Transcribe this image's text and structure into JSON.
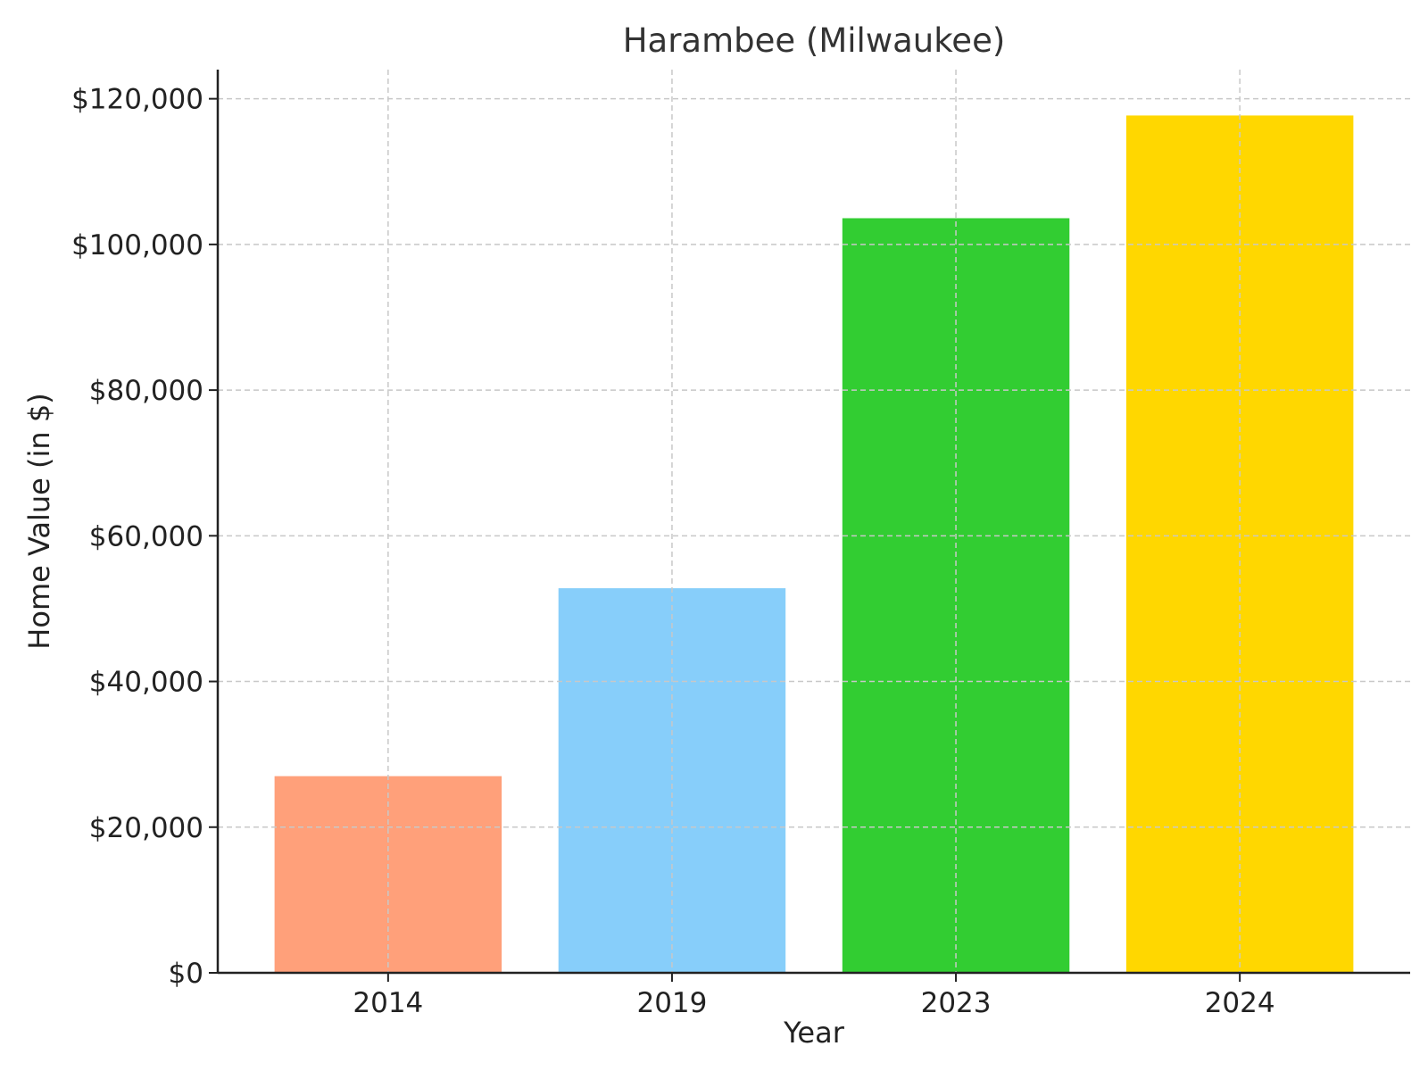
{
  "chart_data": {
    "type": "bar",
    "title": "Harambee (Milwaukee)",
    "xlabel": "Year",
    "ylabel": "Home Value (in $)",
    "categories": [
      "2014",
      "2019",
      "2023",
      "2024"
    ],
    "values": [
      27000,
      52800,
      103600,
      117700
    ],
    "colors": [
      "#FFA07A",
      "#87CEFA",
      "#32CD32",
      "#FFD700"
    ],
    "ylim": [
      0,
      124000
    ],
    "yticks": [
      0,
      20000,
      40000,
      60000,
      80000,
      100000,
      120000
    ],
    "ytick_labels": [
      "$0",
      "$20,000",
      "$40,000",
      "$60,000",
      "$80,000",
      "$100,000",
      "$120,000"
    ],
    "grid": true,
    "legend": false
  }
}
